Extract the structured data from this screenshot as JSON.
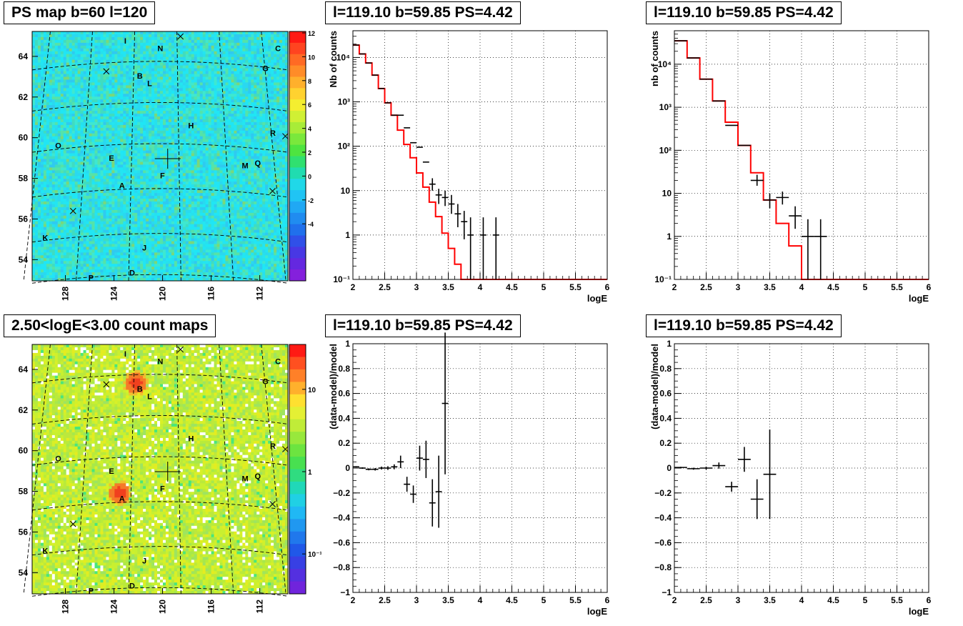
{
  "titles": {
    "map_top": "PS map b=60 l=120",
    "map_bottom": "2.50<logE<3.00 count maps",
    "spec_top_mid": "l=119.10 b=59.85 PS=4.42",
    "spec_top_right": "l=119.10 b=59.85 PS=4.42",
    "spec_bot_mid": "l=119.10 b=59.85 PS=4.42",
    "spec_bot_right": "l=119.10 b=59.85 PS=4.42"
  },
  "maps": {
    "lon_ticks": [
      "128",
      "124",
      "120",
      "116",
      "112"
    ],
    "lat_ticks": [
      "64",
      "62",
      "60",
      "58",
      "56",
      "54"
    ],
    "source_labels": [
      "I",
      "N",
      "C",
      "B",
      "L",
      "G",
      "H",
      "R",
      "O",
      "E",
      "M",
      "Q",
      "F",
      "A",
      "K",
      "J",
      "P",
      "D"
    ],
    "colorbar_top": {
      "ticks": [
        "12",
        "10",
        "8",
        "6",
        "4",
        "2",
        "0",
        "-2",
        "-4"
      ]
    },
    "colorbar_bottom": {
      "ticks": [
        "10",
        "1",
        "10⁻¹"
      ]
    },
    "colors": {
      "background_top": "#23e5f2",
      "background_bottom": "#c8f030",
      "hotspot": "#f0401e"
    }
  },
  "chart_data": [
    {
      "type": "line",
      "panel": "top-middle",
      "title": "l=119.10 b=59.85 PS=4.42",
      "xlabel": "logE",
      "ylabel": "Nb of counts",
      "xlim": [
        2,
        6
      ],
      "ylim": [
        0.1,
        40000
      ],
      "yscale": "log",
      "grid": true,
      "x_ticks": [
        "2",
        "2.5",
        "3",
        "3.5",
        "4",
        "4.5",
        "5",
        "5.5",
        "6"
      ],
      "y_ticks": [
        "10⁻¹",
        "1",
        "10",
        "10²",
        "10³",
        "10⁴"
      ],
      "model_color": "#ff0000",
      "model_step": {
        "bin_width": 0.1,
        "x_start": 2.0,
        "values": [
          19000,
          12000,
          7500,
          4000,
          2000,
          950,
          500,
          230,
          110,
          55,
          25,
          12,
          5.5,
          2.6,
          1.1,
          0.5,
          0.22,
          0.1,
          0.1,
          0.1,
          0.1,
          0.1,
          0.1,
          0.1,
          0.1,
          0.1,
          0.1,
          0.1,
          0.1,
          0.1,
          0.1,
          0.1,
          0.1,
          0.1,
          0.1,
          0.1,
          0.1,
          0.1,
          0.1,
          0.1
        ]
      },
      "data_points": [
        {
          "x": 2.05,
          "y": 19000
        },
        {
          "x": 2.15,
          "y": 12000
        },
        {
          "x": 2.25,
          "y": 7500
        },
        {
          "x": 2.35,
          "y": 4000
        },
        {
          "x": 2.45,
          "y": 2000
        },
        {
          "x": 2.55,
          "y": 950
        },
        {
          "x": 2.65,
          "y": 500
        },
        {
          "x": 2.75,
          "y": 500
        },
        {
          "x": 2.85,
          "y": 260
        },
        {
          "x": 2.95,
          "y": 120
        },
        {
          "x": 3.05,
          "y": 95
        },
        {
          "x": 3.15,
          "y": 44
        },
        {
          "x": 3.25,
          "y": 14,
          "ylo": 10,
          "yhi": 19
        },
        {
          "x": 3.35,
          "y": 8,
          "ylo": 5,
          "yhi": 11
        },
        {
          "x": 3.45,
          "y": 7,
          "ylo": 4.5,
          "yhi": 10
        },
        {
          "x": 3.55,
          "y": 5,
          "ylo": 3,
          "yhi": 8
        },
        {
          "x": 3.65,
          "y": 3,
          "ylo": 1.5,
          "yhi": 5
        },
        {
          "x": 3.75,
          "y": 2,
          "ylo": 0.8,
          "yhi": 3.5
        },
        {
          "x": 3.85,
          "y": 1,
          "ylo": 0.1,
          "yhi": 2.5
        },
        {
          "x": 4.05,
          "y": 1,
          "ylo": 0.1,
          "yhi": 2.5
        },
        {
          "x": 4.25,
          "y": 1,
          "ylo": 0.1,
          "yhi": 2.5
        }
      ]
    },
    {
      "type": "line",
      "panel": "top-right",
      "title": "l=119.10 b=59.85 PS=4.42",
      "xlabel": "logE",
      "ylabel": "nb of counts",
      "xlim": [
        2,
        6
      ],
      "ylim": [
        0.1,
        60000
      ],
      "yscale": "log",
      "grid": true,
      "x_ticks": [
        "2",
        "2.5",
        "3",
        "3.5",
        "4",
        "4.5",
        "5",
        "5.5",
        "6"
      ],
      "y_ticks": [
        "10⁻¹",
        "1",
        "10",
        "10²",
        "10³",
        "10⁴"
      ],
      "model_color": "#ff0000",
      "model_step": {
        "bin_width": 0.2,
        "x_start": 2.0,
        "values": [
          35000,
          14000,
          4500,
          1400,
          450,
          130,
          30,
          7,
          2,
          0.6,
          0.1,
          0.1,
          0.1,
          0.1,
          0.1,
          0.1,
          0.1,
          0.1,
          0.1,
          0.1
        ]
      },
      "data_points": [
        {
          "x": 2.1,
          "y": 35000
        },
        {
          "x": 2.3,
          "y": 14000
        },
        {
          "x": 2.5,
          "y": 4500
        },
        {
          "x": 2.7,
          "y": 1400
        },
        {
          "x": 2.9,
          "y": 380
        },
        {
          "x": 3.1,
          "y": 130
        },
        {
          "x": 3.3,
          "y": 20,
          "ylo": 15,
          "yhi": 27
        },
        {
          "x": 3.5,
          "y": 7,
          "ylo": 4.5,
          "yhi": 10
        },
        {
          "x": 3.7,
          "y": 8,
          "ylo": 5.5,
          "yhi": 11
        },
        {
          "x": 3.9,
          "y": 3,
          "ylo": 1.5,
          "yhi": 5
        },
        {
          "x": 4.1,
          "y": 1,
          "ylo": 0.1,
          "yhi": 2.5
        },
        {
          "x": 4.3,
          "y": 1,
          "ylo": 0.1,
          "yhi": 2.5
        }
      ]
    },
    {
      "type": "scatter",
      "panel": "bottom-middle",
      "title": "l=119.10 b=59.85 PS=4.42",
      "xlabel": "logE",
      "ylabel": "(data-model)/model",
      "xlim": [
        2,
        6
      ],
      "ylim": [
        -1,
        1
      ],
      "grid": true,
      "x_ticks": [
        "2",
        "2.5",
        "3",
        "3.5",
        "4",
        "4.5",
        "5",
        "5.5",
        "6"
      ],
      "y_ticks": [
        "−1",
        "−0.8",
        "−0.6",
        "−0.4",
        "−0.2",
        "0",
        "0.2",
        "0.4",
        "0.6",
        "0.8",
        "1"
      ],
      "data_points": [
        {
          "x": 2.05,
          "y": 0.01,
          "err": 0.005
        },
        {
          "x": 2.15,
          "y": 0.0,
          "err": 0.006
        },
        {
          "x": 2.25,
          "y": -0.01,
          "err": 0.008
        },
        {
          "x": 2.35,
          "y": -0.01,
          "err": 0.01
        },
        {
          "x": 2.45,
          "y": 0.0,
          "err": 0.012
        },
        {
          "x": 2.55,
          "y": 0.0,
          "err": 0.015
        },
        {
          "x": 2.65,
          "y": 0.01,
          "err": 0.02
        },
        {
          "x": 2.75,
          "y": 0.05,
          "err": 0.05
        },
        {
          "x": 2.85,
          "y": -0.13,
          "err": 0.06
        },
        {
          "x": 2.95,
          "y": -0.21,
          "err": 0.07
        },
        {
          "x": 3.05,
          "y": 0.08,
          "err": 0.1
        },
        {
          "x": 3.15,
          "y": 0.07,
          "err": 0.15
        },
        {
          "x": 3.25,
          "y": -0.28,
          "err": 0.19
        },
        {
          "x": 3.35,
          "y": -0.19,
          "err": 0.29
        },
        {
          "x": 3.45,
          "y": 0.52,
          "err": 0.57
        }
      ]
    },
    {
      "type": "scatter",
      "panel": "bottom-right",
      "title": "l=119.10 b=59.85 PS=4.42",
      "xlabel": "logE",
      "ylabel": "(data-model)/model",
      "xlim": [
        2,
        6
      ],
      "ylim": [
        -1,
        1
      ],
      "grid": true,
      "x_ticks": [
        "2",
        "2.5",
        "3",
        "3.5",
        "4",
        "4.5",
        "5",
        "5.5",
        "6"
      ],
      "y_ticks": [
        "−1",
        "−0.8",
        "−0.6",
        "−0.4",
        "−0.2",
        "0",
        "0.2",
        "0.4",
        "0.6",
        "0.8",
        "1"
      ],
      "data_points": [
        {
          "x": 2.1,
          "y": 0.005,
          "err": 0.005
        },
        {
          "x": 2.3,
          "y": -0.005,
          "err": 0.008
        },
        {
          "x": 2.5,
          "y": 0.0,
          "err": 0.012
        },
        {
          "x": 2.7,
          "y": 0.02,
          "err": 0.025
        },
        {
          "x": 2.9,
          "y": -0.15,
          "err": 0.04
        },
        {
          "x": 3.1,
          "y": 0.07,
          "err": 0.1
        },
        {
          "x": 3.3,
          "y": -0.25,
          "err": 0.16
        },
        {
          "x": 3.5,
          "y": -0.05,
          "err": 0.36
        }
      ]
    }
  ]
}
